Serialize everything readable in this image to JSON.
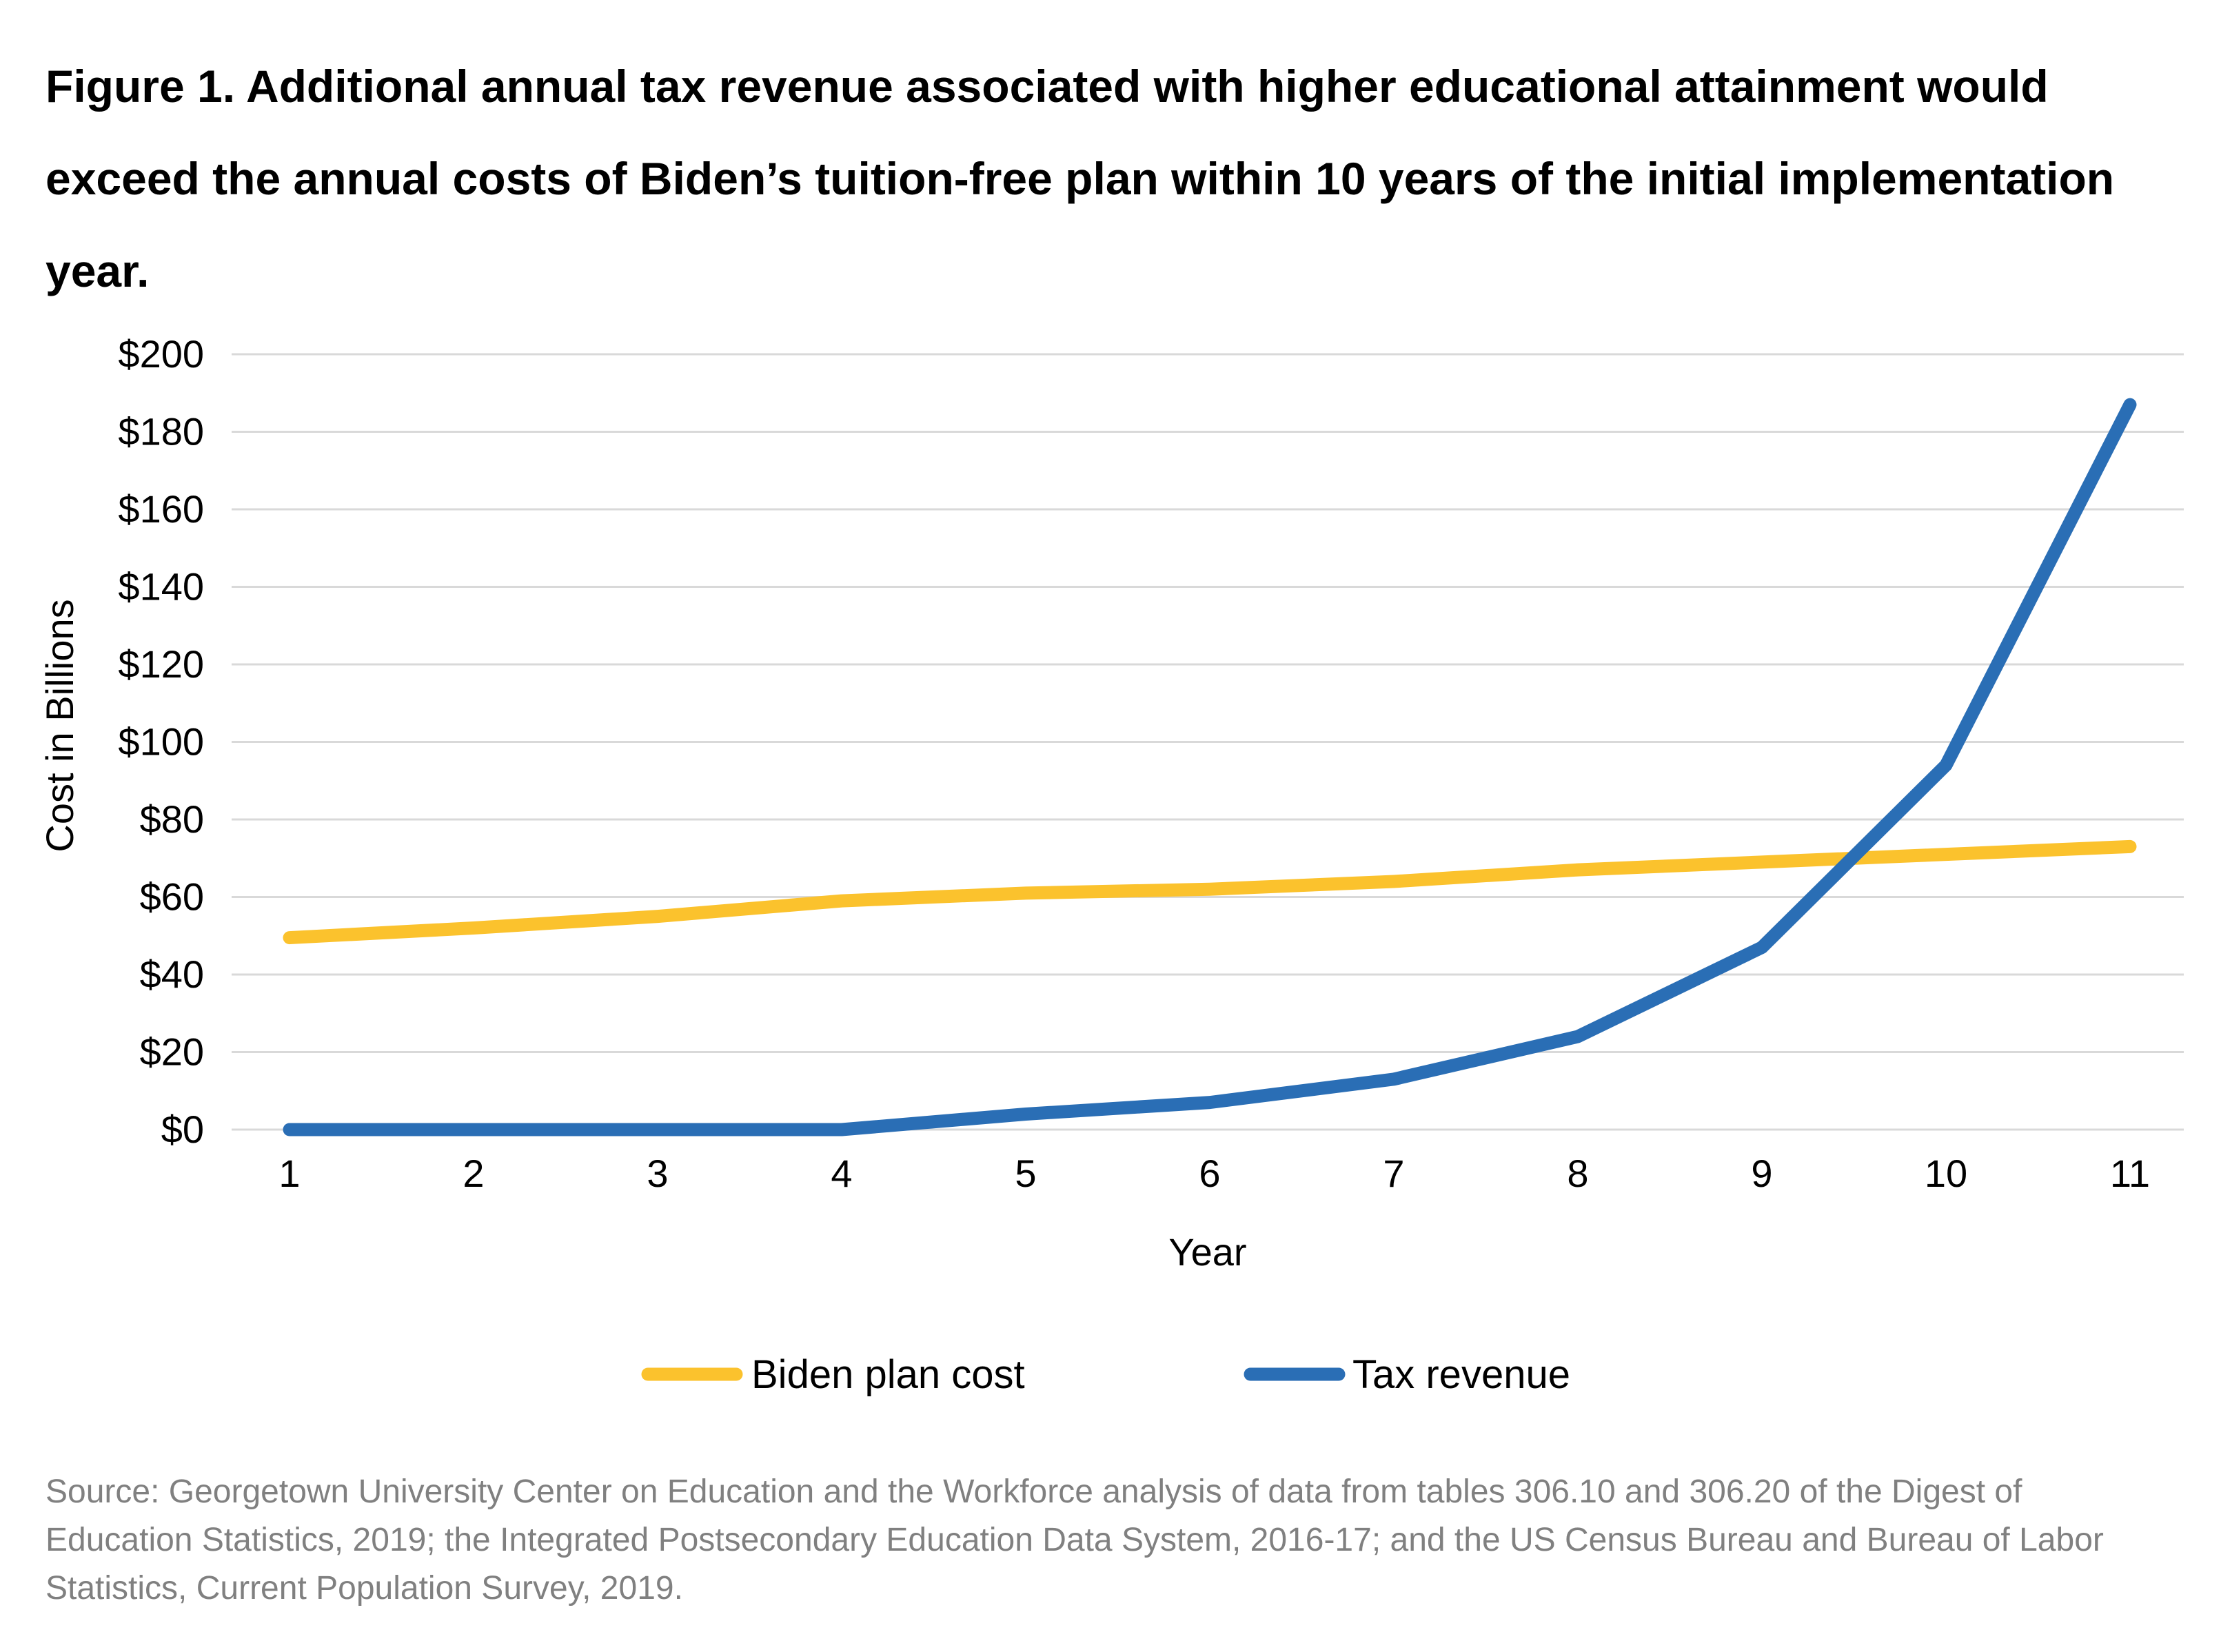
{
  "title": "Figure 1. Additional annual tax revenue associated with higher educational attainment would exceed the annual costs of Biden’s tuition-free plan within 10 years of the initial implementation year.",
  "source": "Source: Georgetown University Center on Education and the Workforce analysis of data from tables 306.10 and 306.20 of the Digest of Education Statistics, 2019; the Integrated Postsecondary Education Data System, 2016-17; and the US Census Bureau and Bureau of Labor Statistics, Current Population Survey, 2019.",
  "chart_data": {
    "type": "line",
    "title": "Figure 1. Additional annual tax revenue associated with higher educational attainment would exceed the annual costs of Biden’s tuition-free plan within 10 years of the initial implementation year.",
    "xlabel": "Year",
    "ylabel": "Cost in Billions",
    "x": [
      1,
      2,
      3,
      4,
      5,
      6,
      7,
      8,
      9,
      10,
      11
    ],
    "ylim": [
      0,
      200
    ],
    "yticks": [
      0,
      20,
      40,
      60,
      80,
      100,
      120,
      140,
      160,
      180,
      200
    ],
    "ytick_labels": [
      "$0",
      "$20",
      "$40",
      "$60",
      "$80",
      "$100",
      "$120",
      "$140",
      "$160",
      "$180",
      "$200"
    ],
    "grid": "horizontal",
    "legend_position": "bottom",
    "series": [
      {
        "name": "Biden plan cost",
        "color": "#FBC22D",
        "values": [
          49.5,
          52,
          55,
          59,
          61,
          62,
          64,
          67,
          69,
          71,
          73
        ]
      },
      {
        "name": "Tax revenue",
        "color": "#2A6EB5",
        "values": [
          0,
          0,
          0,
          0,
          4,
          7,
          13,
          24,
          47,
          94,
          187
        ]
      }
    ],
    "grid_color": "#D9D9D9"
  }
}
